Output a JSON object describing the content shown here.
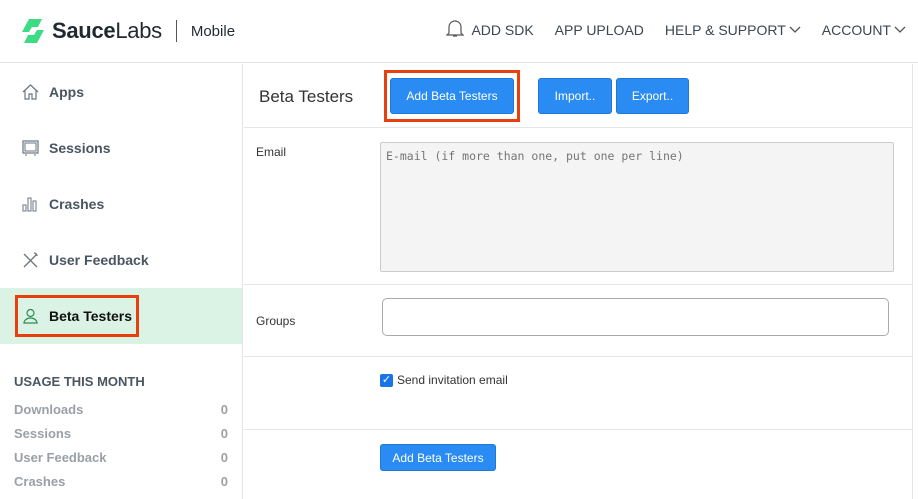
{
  "header": {
    "brand_bold": "Sauce",
    "brand_light": "Labs",
    "product": "Mobile",
    "nav": [
      {
        "label": "ADD SDK"
      },
      {
        "label": "APP UPLOAD"
      },
      {
        "label": "HELP & SUPPORT",
        "dropdown": true
      },
      {
        "label": "ACCOUNT",
        "dropdown": true
      }
    ],
    "icons": {
      "bell": "bell-icon"
    }
  },
  "sidebar": {
    "items": [
      {
        "label": "Apps",
        "icon": "home-icon"
      },
      {
        "label": "Sessions",
        "icon": "sessions-icon"
      },
      {
        "label": "Crashes",
        "icon": "bar-chart-icon"
      },
      {
        "label": "User Feedback",
        "icon": "tools-icon"
      },
      {
        "label": "Beta Testers",
        "icon": "user-icon",
        "active": true
      }
    ],
    "usage": {
      "title": "USAGE THIS MONTH",
      "rows": [
        {
          "label": "Downloads",
          "value": "0"
        },
        {
          "label": "Sessions",
          "value": "0"
        },
        {
          "label": "User Feedback",
          "value": "0"
        },
        {
          "label": "Crashes",
          "value": "0"
        }
      ]
    }
  },
  "main": {
    "title": "Beta Testers",
    "add_label": "Add Beta Testers",
    "import_label": "Import..",
    "export_label": "Export..",
    "email_label": "Email",
    "email_placeholder": "E-mail (if more than one, put one per line)",
    "email_value": "",
    "groups_label": "Groups",
    "groups_value": "",
    "send_invite_label": "Send invitation email",
    "send_invite_checked": true,
    "submit_label": "Add Beta Testers"
  },
  "colors": {
    "accent": "#2a8cf3",
    "brand_green": "#3ddc84",
    "active_bg": "#daf3e5",
    "highlight": "#e8400c"
  }
}
